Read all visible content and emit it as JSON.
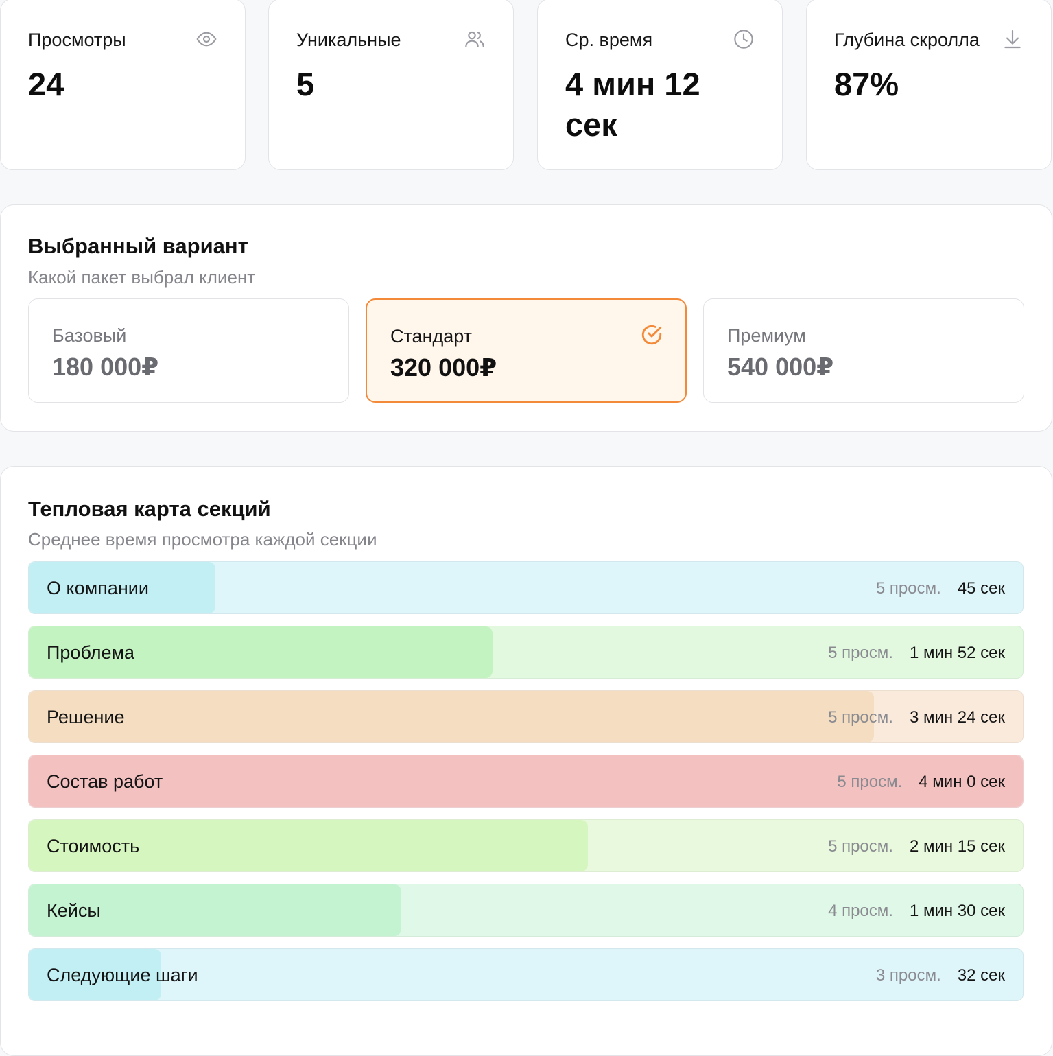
{
  "stats": [
    {
      "label": "Просмотры",
      "value": "24",
      "icon": "eye-icon"
    },
    {
      "label": "Уникальные",
      "value": "5",
      "icon": "users-icon"
    },
    {
      "label": "Ср. время",
      "value": "4 мин 12 сек",
      "icon": "clock-icon"
    },
    {
      "label": "Глубина скролла",
      "value": "87%",
      "icon": "arrow-down-icon"
    }
  ],
  "selected_variant": {
    "title": "Выбранный вариант",
    "subtitle": "Какой пакет выбрал клиент",
    "packages": [
      {
        "name": "Базовый",
        "price": "180 000₽",
        "selected": false
      },
      {
        "name": "Стандарт",
        "price": "320 000₽",
        "selected": true
      },
      {
        "name": "Премиум",
        "price": "540 000₽",
        "selected": false
      }
    ],
    "accent_color": "#f28a3a"
  },
  "heatmap": {
    "title": "Тепловая карта секций",
    "subtitle": "Среднее время просмотра каждой секции",
    "rows": [
      {
        "label": "О компании",
        "views": "5 просм.",
        "time": "45 сек",
        "seconds": 45,
        "fill_color": "#c2eff4",
        "track_color": "#def5f9"
      },
      {
        "label": "Проблема",
        "views": "5 просм.",
        "time": "1 мин 52 сек",
        "seconds": 112,
        "fill_color": "#c3f3c0",
        "track_color": "#e2f9e0"
      },
      {
        "label": "Решение",
        "views": "5 просм.",
        "time": "3 мин 24 сек",
        "seconds": 204,
        "fill_color": "#f4ddc1",
        "track_color": "#f9eadc"
      },
      {
        "label": "Состав работ",
        "views": "5 просм.",
        "time": "4 мин 0 сек",
        "seconds": 240,
        "fill_color": "#f4c1c1",
        "track_color": "#f9dcdc"
      },
      {
        "label": "Стоимость",
        "views": "5 просм.",
        "time": "2 мин 15 сек",
        "seconds": 135,
        "fill_color": "#d6f6c0",
        "track_color": "#e9f9de"
      },
      {
        "label": "Кейсы",
        "views": "4 просм.",
        "time": "1 мин 30 сек",
        "seconds": 90,
        "fill_color": "#c4f3d2",
        "track_color": "#e0f8e7"
      },
      {
        "label": "Следующие шаги",
        "views": "3 просм.",
        "time": "32 сек",
        "seconds": 32,
        "fill_color": "#c2eff4",
        "track_color": "#def5f9"
      }
    ],
    "max_seconds": 240
  }
}
